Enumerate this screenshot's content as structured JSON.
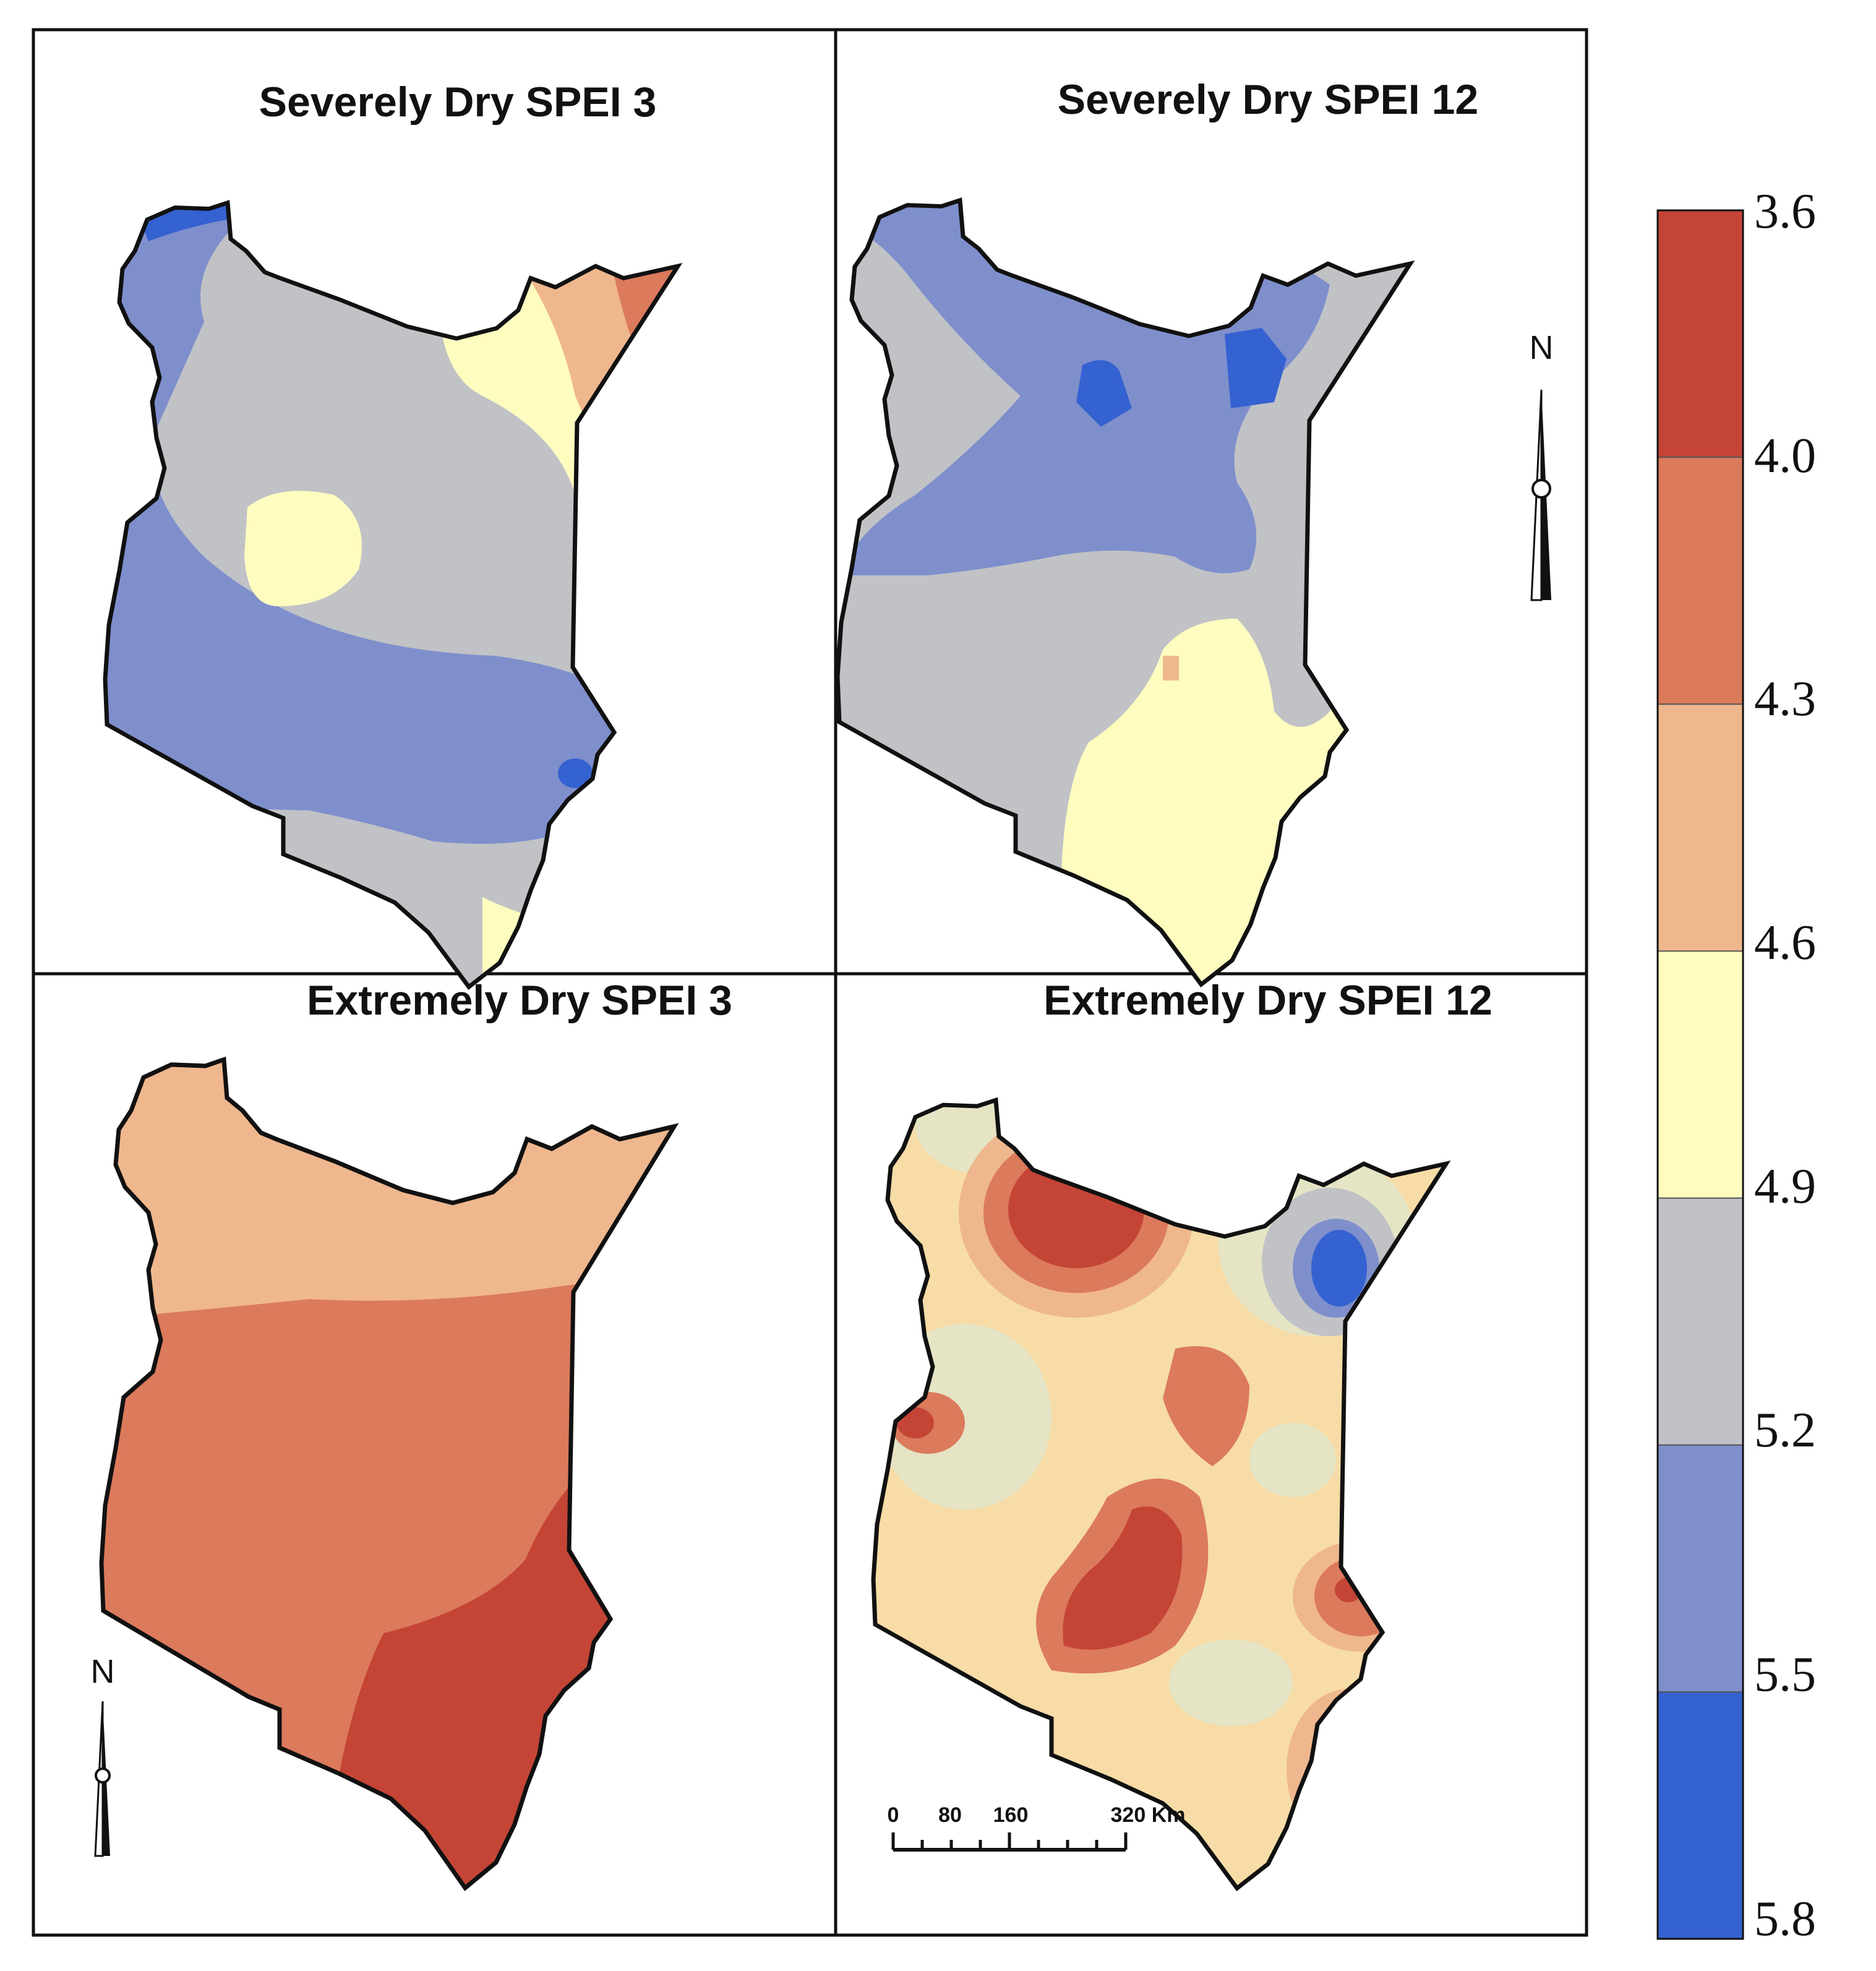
{
  "panels": {
    "sev3": {
      "title": "Severely Dry SPEI 3"
    },
    "sev12": {
      "title": "Severely Dry SPEI 12"
    },
    "ext3": {
      "title": "Extremely Dry SPEI 3"
    },
    "ext12": {
      "title": "Extremely Dry SPEI 12"
    }
  },
  "legend": {
    "ticks": [
      "3.6",
      "4.0",
      "4.3",
      "4.6",
      "4.9",
      "5.2",
      "5.5",
      "5.8"
    ],
    "bins": [
      {
        "range": "3.6-4.0",
        "color": "#c44536"
      },
      {
        "range": "4.0-4.3",
        "color": "#dc7a5c"
      },
      {
        "range": "4.3-4.6",
        "color": "#efb78d"
      },
      {
        "range": "4.6-4.9",
        "color": "#fffcc0"
      },
      {
        "range": "4.9-5.2",
        "color": "#c0c2c6"
      },
      {
        "range": "5.2-5.5",
        "color": "#7f8fcc"
      },
      {
        "range": "5.5-5.8",
        "color": "#3562d1"
      }
    ]
  },
  "north_arrow": {
    "label": "N"
  },
  "scale_bar": {
    "labels": [
      "0",
      "80",
      "160",
      "320 Km"
    ]
  }
}
